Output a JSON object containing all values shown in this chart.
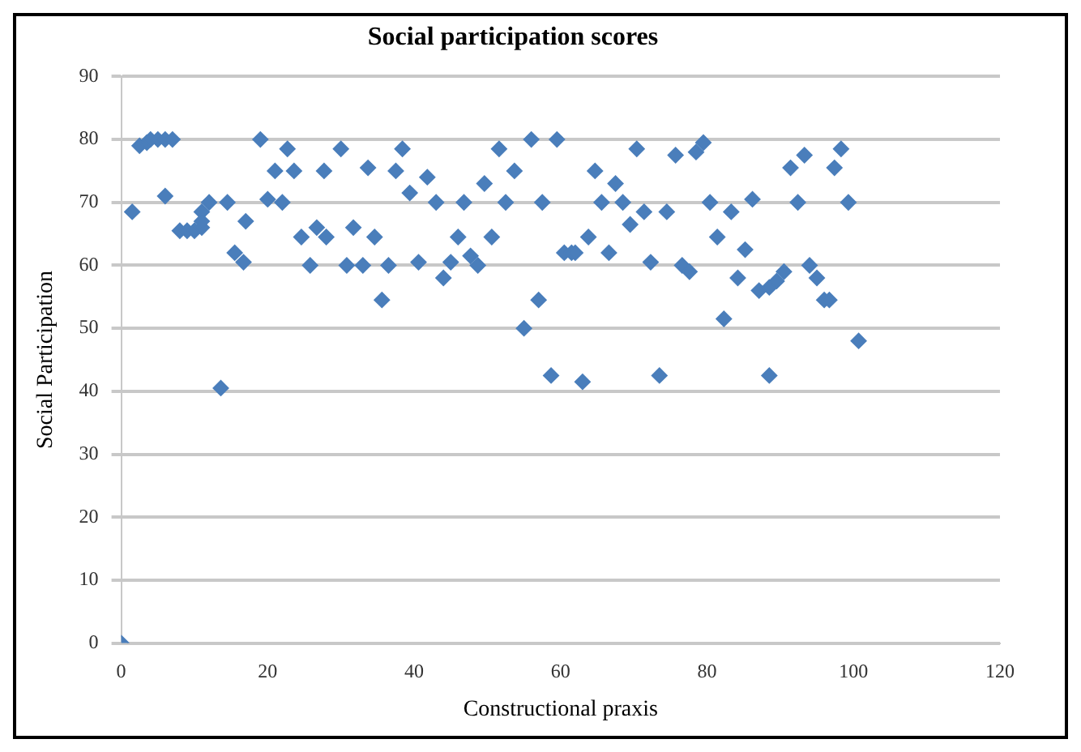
{
  "chart_data": {
    "type": "scatter",
    "title": "Social participation scores",
    "xlabel": "Constructional praxis",
    "ylabel": "Social Participation",
    "x": [
      0,
      1.5,
      2.5,
      3.5,
      4,
      5,
      6,
      7,
      6,
      8,
      9,
      10,
      11,
      11,
      12,
      11,
      13.6,
      14.5,
      15.5,
      16.7,
      17,
      19,
      20,
      21,
      22,
      22.7,
      23.6,
      24.6,
      25.8,
      26.7,
      27.7,
      28,
      30,
      30.8,
      31.7,
      33,
      33.7,
      34.6,
      35.6,
      36.5,
      37.5,
      38.4,
      39.4,
      40.6,
      41.8,
      43,
      44,
      45,
      46,
      46.8,
      47.7,
      48.7,
      49.6,
      50.6,
      51.6,
      52.5,
      53.7,
      55,
      56,
      57,
      57.5,
      58.7,
      59.5,
      60.5,
      61.5,
      62,
      63,
      63.8,
      64.7,
      65.6,
      66.6,
      67.5,
      68.5,
      69.5,
      70.4,
      71.4,
      72.3,
      73.5,
      74.5,
      75.7,
      76.6,
      77.6,
      78.5,
      79.5,
      80.4,
      81.4,
      82.3,
      83.3,
      84.2,
      85.2,
      86.2,
      87.1,
      88.5,
      88.5,
      89.5,
      90.5,
      91.4,
      92.4,
      93.3,
      94,
      95,
      96,
      96.7,
      97.4,
      98.3,
      99.3,
      100.7
    ],
    "values": [
      0,
      68.5,
      79,
      79.5,
      80,
      80,
      80,
      80,
      71,
      65.5,
      65.5,
      65.5,
      66,
      68.5,
      70,
      67,
      40.5,
      70,
      62,
      60.5,
      67,
      80,
      70.5,
      75,
      70,
      78.5,
      75,
      64.5,
      60,
      66,
      75,
      64.5,
      78.5,
      60,
      66,
      60,
      75.5,
      64.5,
      54.5,
      60,
      75,
      78.5,
      71.5,
      60.5,
      74,
      70,
      58,
      60.5,
      64.5,
      70,
      61.5,
      60,
      73,
      64.5,
      78.5,
      70,
      75,
      50,
      80,
      54.5,
      70,
      42.5,
      80,
      62,
      62,
      62,
      41.5,
      64.5,
      75,
      70,
      62,
      73,
      70,
      66.5,
      78.5,
      68.5,
      60.5,
      42.5,
      68.5,
      77.5,
      60,
      59,
      78,
      79.5,
      70,
      64.5,
      51.5,
      68.5,
      58,
      62.5,
      70.5,
      56,
      42.5,
      56.5,
      57.5,
      59,
      75.5,
      70,
      77.5,
      60,
      58,
      54.5,
      54.5,
      75.5,
      78.5,
      70,
      48
    ],
    "color": "#4a7ebb",
    "marker": "diamond",
    "xlim": [
      0,
      120
    ],
    "xticks": [
      0,
      20,
      40,
      60,
      80,
      100,
      120
    ],
    "ylim": [
      0,
      90
    ],
    "yticks": [
      0,
      10,
      20,
      30,
      40,
      50,
      60,
      70,
      80,
      90
    ],
    "grid": "y"
  }
}
